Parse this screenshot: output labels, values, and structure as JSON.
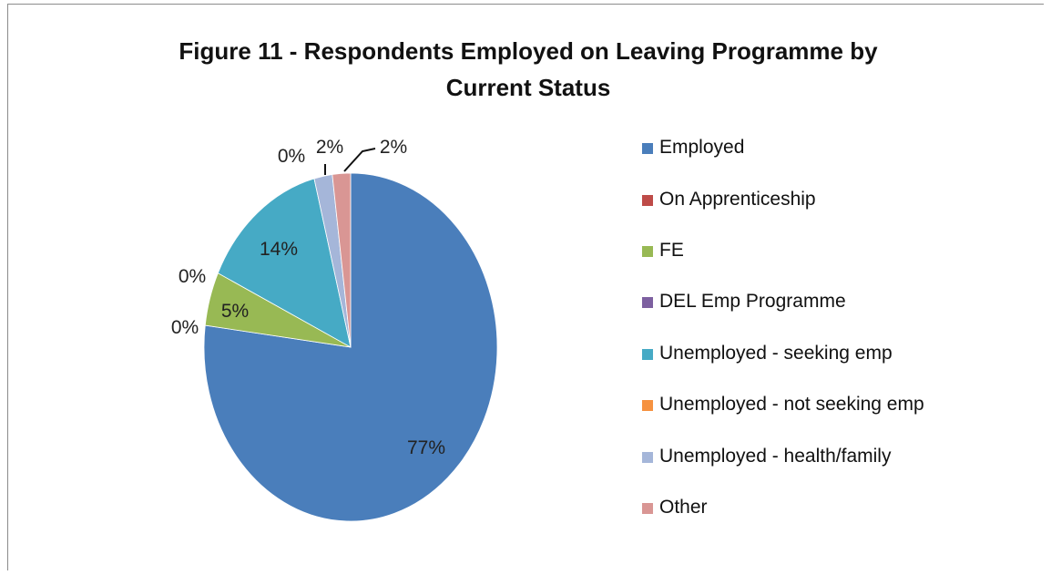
{
  "chart_data": {
    "type": "pie",
    "title_lines": [
      "Figure 11 - Respondents Employed on Leaving Programme by",
      "Current Status"
    ],
    "slices": [
      {
        "name": "Employed",
        "value": 77,
        "label": "77%",
        "color": "#4a7ebb"
      },
      {
        "name": "On Apprenticeship",
        "value": 0,
        "label": "0%",
        "color": "#be4b48"
      },
      {
        "name": "FE",
        "value": 5,
        "label": "5%",
        "color": "#98b954"
      },
      {
        "name": "DEL Emp Programme",
        "value": 0,
        "label": "0%",
        "color": "#7d60a0"
      },
      {
        "name": "Unemployed - seeking emp",
        "value": 14,
        "label": "14%",
        "color": "#46aac5"
      },
      {
        "name": "Unemployed - not seeking emp",
        "value": 0,
        "label": "0%",
        "color": "#f69240"
      },
      {
        "name": "Unemployed - health/family",
        "value": 2,
        "label": "2%",
        "color": "#a5b6d9"
      },
      {
        "name": "Other",
        "value": 2,
        "label": "2%",
        "color": "#d99694"
      }
    ],
    "legend_position": "right"
  }
}
